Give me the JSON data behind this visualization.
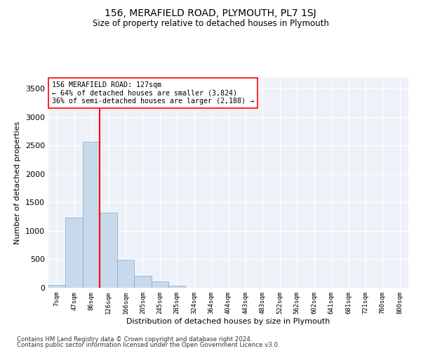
{
  "title": "156, MERAFIELD ROAD, PLYMOUTH, PL7 1SJ",
  "subtitle": "Size of property relative to detached houses in Plymouth",
  "xlabel": "Distribution of detached houses by size in Plymouth",
  "ylabel": "Number of detached properties",
  "bar_labels": [
    "7sqm",
    "47sqm",
    "86sqm",
    "126sqm",
    "166sqm",
    "205sqm",
    "245sqm",
    "285sqm",
    "324sqm",
    "364sqm",
    "404sqm",
    "443sqm",
    "483sqm",
    "522sqm",
    "562sqm",
    "602sqm",
    "641sqm",
    "681sqm",
    "721sqm",
    "760sqm",
    "800sqm"
  ],
  "bar_values": [
    50,
    1230,
    2570,
    1320,
    490,
    215,
    115,
    40,
    5,
    0,
    0,
    0,
    0,
    0,
    0,
    0,
    0,
    0,
    0,
    0,
    0
  ],
  "bar_color": "#c9d9ec",
  "bar_edge_color": "#7fa8cc",
  "vline_x_index": 3,
  "vline_color": "red",
  "annotation_text": "156 MERAFIELD ROAD: 127sqm\n← 64% of detached houses are smaller (3,824)\n36% of semi-detached houses are larger (2,188) →",
  "annotation_box_color": "white",
  "annotation_box_edge": "red",
  "ylim": [
    0,
    3700
  ],
  "yticks": [
    0,
    500,
    1000,
    1500,
    2000,
    2500,
    3000,
    3500
  ],
  "bg_color": "#eef2f8",
  "grid_color": "white",
  "footer1": "Contains HM Land Registry data © Crown copyright and database right 2024.",
  "footer2": "Contains public sector information licensed under the Open Government Licence v3.0."
}
